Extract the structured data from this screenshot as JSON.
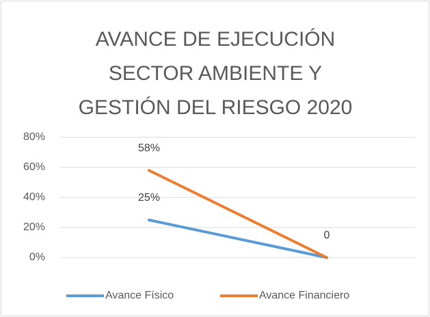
{
  "chart_data": {
    "type": "line",
    "title": "AVANCE DE EJECUCIÓN SECTOR AMBIENTE Y GESTIÓN DEL RIESGO 2020",
    "categories": [
      null,
      null
    ],
    "series": [
      {
        "name": "Avance Físico",
        "color": "#5b9bd5",
        "values": [
          25,
          0
        ],
        "value_labels": [
          "25%",
          null
        ]
      },
      {
        "name": "Avance Financiero",
        "color": "#ed7d31",
        "values": [
          58,
          0
        ],
        "value_labels": [
          "58%",
          "0"
        ]
      }
    ],
    "ylim": [
      0,
      80
    ],
    "yticks": [
      {
        "value": 0,
        "label": "0%"
      },
      {
        "value": 20,
        "label": "20%"
      },
      {
        "value": 40,
        "label": "40%"
      },
      {
        "value": 60,
        "label": "60%"
      },
      {
        "value": 80,
        "label": "80%"
      }
    ],
    "grid": true,
    "legend": "bottom"
  }
}
